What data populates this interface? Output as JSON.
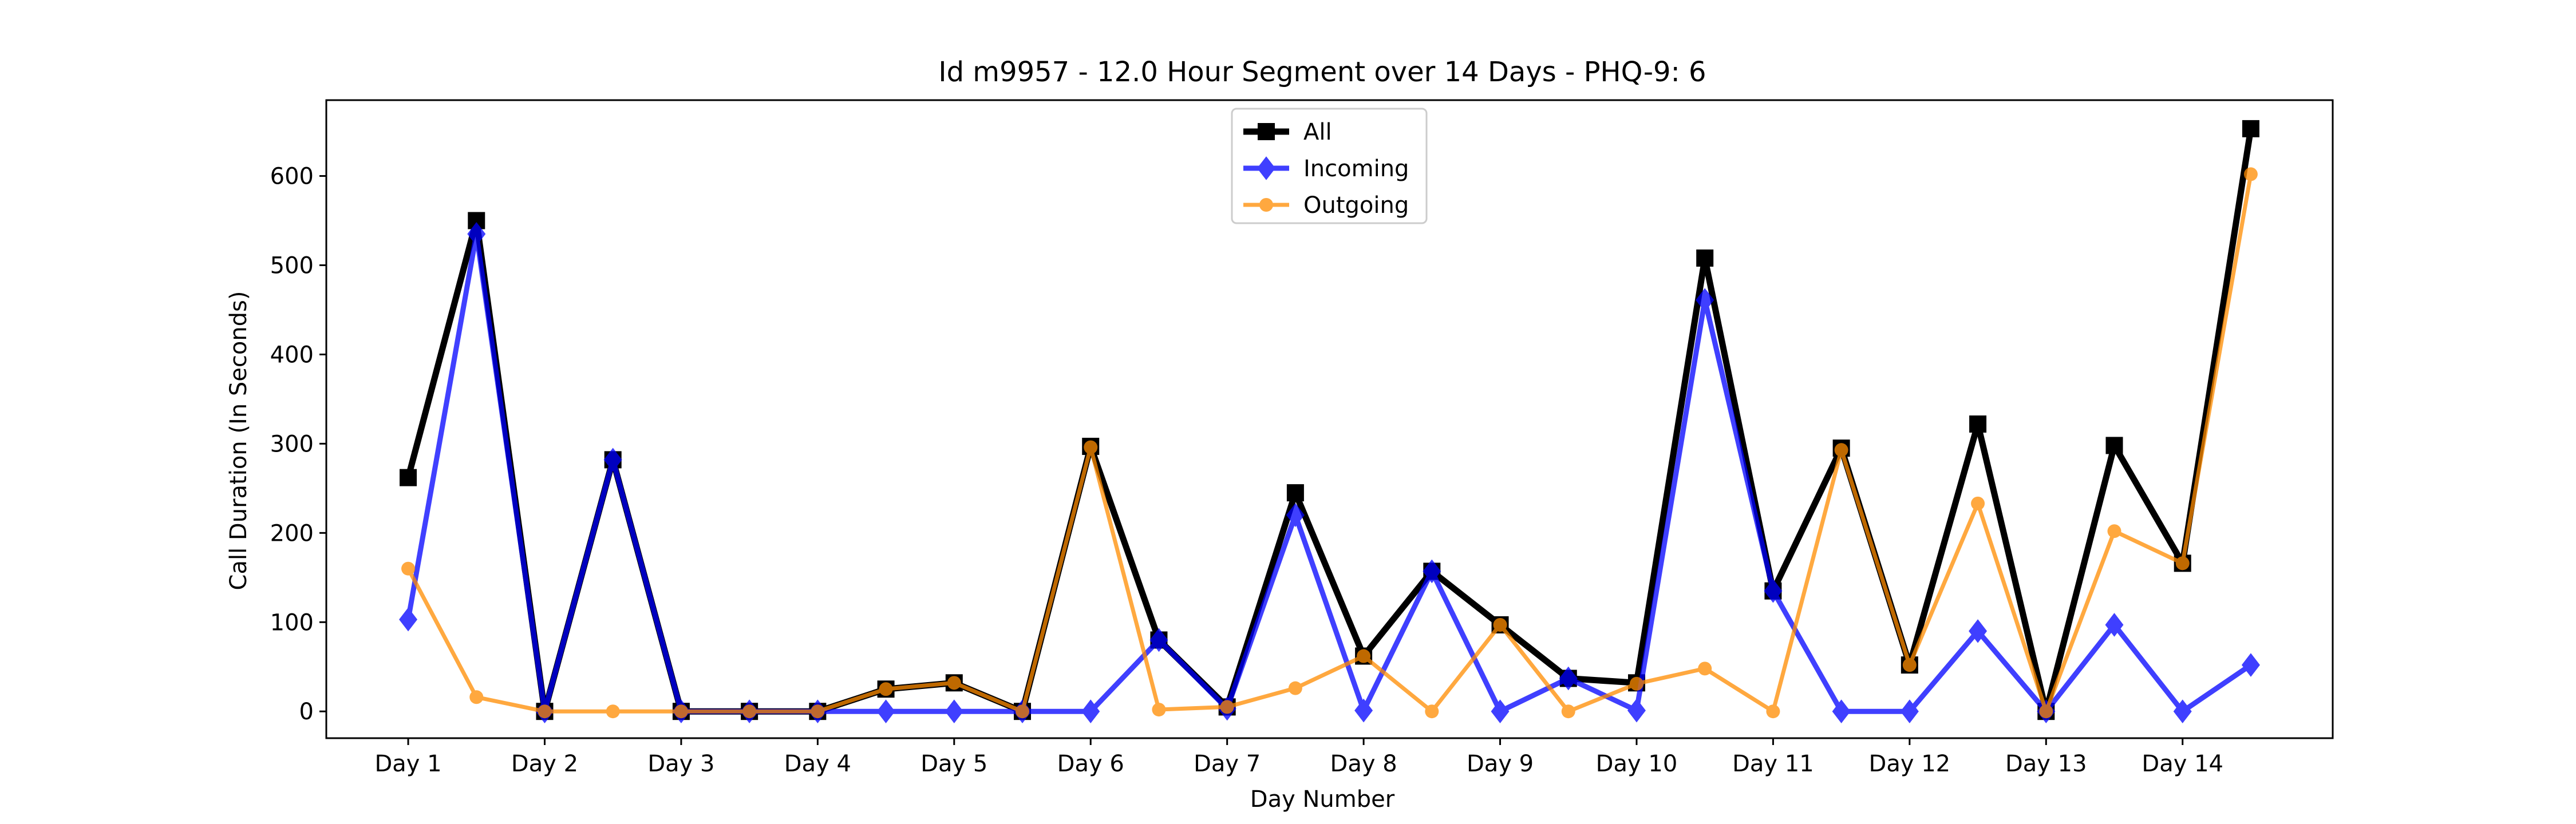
{
  "chart_data": {
    "type": "line",
    "title": "Id m9957 - 12.0 Hour Segment over 14 Days - PHQ-9: 6",
    "xlabel": "Day Number",
    "ylabel": "Call Duration (In Seconds)",
    "categories": [
      "Day 1",
      "Day 2",
      "Day 3",
      "Day 4",
      "Day 5",
      "Day 6",
      "Day 7",
      "Day 8",
      "Day 9",
      "Day 10",
      "Day 11",
      "Day 12",
      "Day 13",
      "Day 14"
    ],
    "x": [
      1,
      1.5,
      2,
      2.5,
      3,
      3.5,
      4,
      4.5,
      5,
      5.5,
      6,
      6.5,
      7,
      7.5,
      8,
      8.5,
      9,
      9.5,
      10,
      10.5,
      11,
      11.5,
      12,
      12.5,
      13,
      13.5,
      14,
      14.5
    ],
    "xlim": [
      0.4,
      15.1
    ],
    "ylim": [
      -30,
      685
    ],
    "yticks": [
      0,
      100,
      200,
      300,
      400,
      500,
      600
    ],
    "grid": false,
    "legend_position": "top-center",
    "series": [
      {
        "name": "All",
        "color": "#000000",
        "marker": "square",
        "values": [
          262,
          550,
          0,
          282,
          0,
          0,
          0,
          25,
          32,
          0,
          297,
          80,
          5,
          245,
          62,
          157,
          97,
          37,
          32,
          508,
          135,
          295,
          52,
          322,
          0,
          298,
          166,
          653
        ]
      },
      {
        "name": "Incoming",
        "color": "#0000ff",
        "marker": "diamond",
        "values": [
          103,
          535,
          0,
          282,
          0,
          0,
          0,
          0,
          0,
          0,
          0,
          80,
          3,
          220,
          1,
          157,
          0,
          37,
          1,
          461,
          135,
          0,
          0,
          90,
          0,
          97,
          0,
          52
        ]
      },
      {
        "name": "Outgoing",
        "color": "#ff8c00",
        "marker": "circle",
        "values": [
          160,
          16,
          0,
          0,
          0,
          0,
          0,
          25,
          32,
          0,
          296,
          2,
          5,
          26,
          62,
          0,
          97,
          0,
          31,
          48,
          0,
          293,
          52,
          233,
          0,
          202,
          166,
          602
        ]
      }
    ]
  }
}
